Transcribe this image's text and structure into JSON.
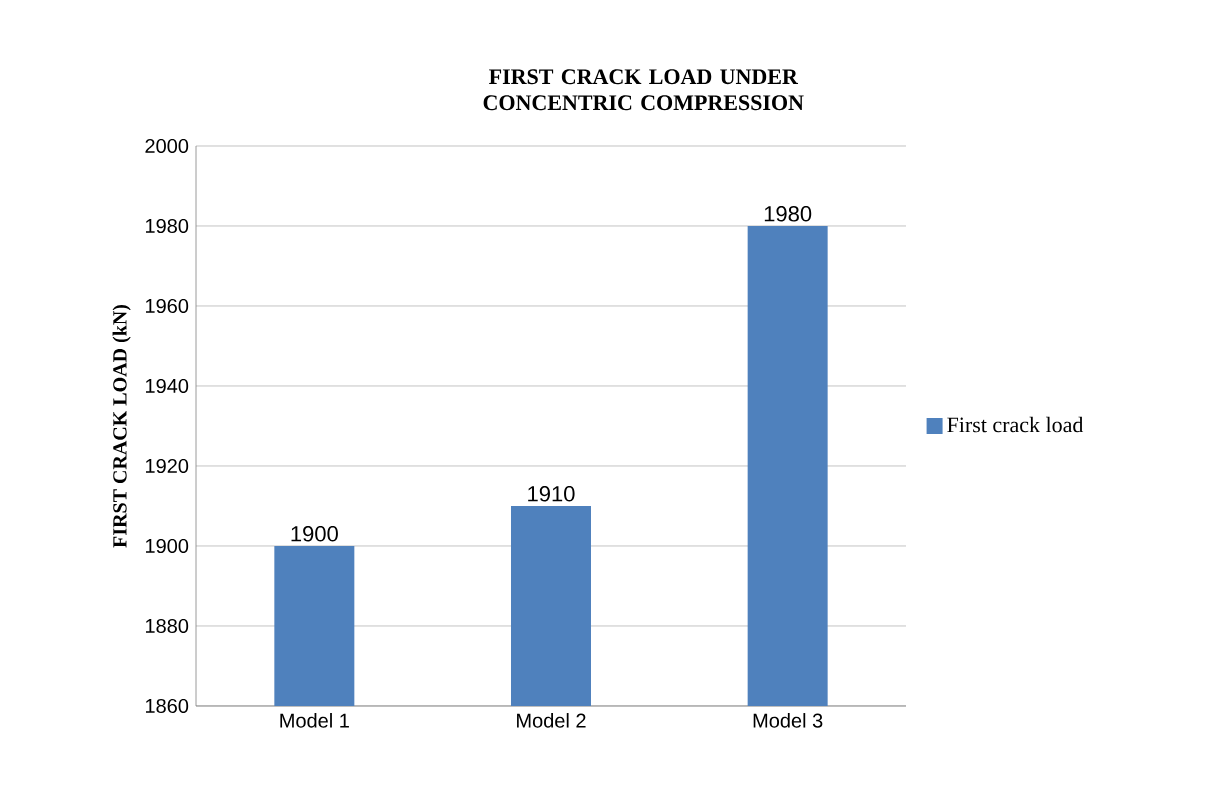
{
  "chart_data": {
    "type": "bar",
    "title": "FIRST CRACK LOAD UNDER CONCENTRIC COMPRESSION",
    "ylabel": "FIRST CRACK LOAD (kN)",
    "categories": [
      "Model 1",
      "Model 2",
      "Model 3"
    ],
    "series": [
      {
        "name": "First crack load",
        "color": "#4f81bd",
        "values": [
          1900,
          1910,
          1980
        ]
      }
    ],
    "ylim": [
      1860,
      2000
    ],
    "yticks": [
      1860,
      1880,
      1900,
      1920,
      1940,
      1960,
      1980,
      2000
    ],
    "grid": "y",
    "legend": "right",
    "data_labels": true
  }
}
